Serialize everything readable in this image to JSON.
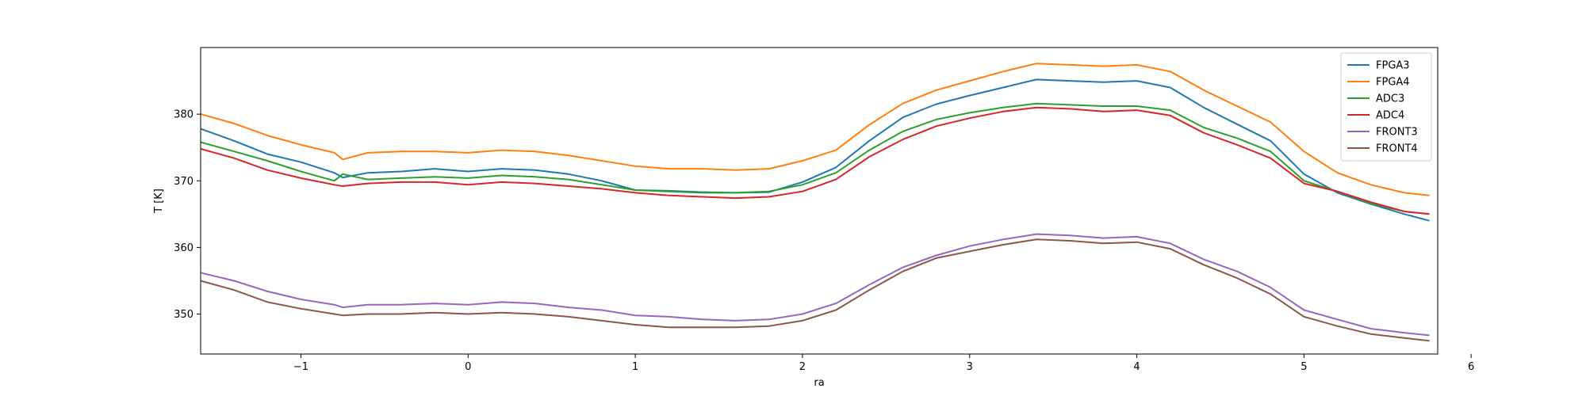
{
  "chart_data": {
    "type": "line",
    "title": "",
    "xlabel": "ra",
    "ylabel": "T [K]",
    "xlim": [
      -1.6,
      5.8
    ],
    "ylim": [
      344,
      390
    ],
    "xticks": [
      -1,
      0,
      1,
      2,
      3,
      4,
      5,
      6
    ],
    "yticks": [
      350,
      360,
      370,
      380
    ],
    "legend_position": "top-right",
    "grid": false,
    "x": [
      -1.6,
      -1.4,
      -1.2,
      -1.0,
      -0.8,
      -0.75,
      -0.6,
      -0.4,
      -0.2,
      0.0,
      0.2,
      0.4,
      0.6,
      0.8,
      1.0,
      1.2,
      1.4,
      1.6,
      1.8,
      2.0,
      2.2,
      2.4,
      2.6,
      2.8,
      3.0,
      3.2,
      3.4,
      3.6,
      3.8,
      4.0,
      4.2,
      4.4,
      4.6,
      4.8,
      5.0,
      5.2,
      5.4,
      5.6,
      5.75
    ],
    "series": [
      {
        "name": "FPGA3",
        "color": "#1f77b4",
        "values": [
          377.8,
          376.0,
          374.0,
          372.8,
          371.2,
          370.5,
          371.2,
          371.4,
          371.8,
          371.4,
          371.8,
          371.6,
          371.0,
          370.0,
          368.6,
          368.5,
          368.3,
          368.2,
          368.3,
          369.8,
          372.0,
          376.0,
          379.5,
          381.5,
          382.8,
          384.0,
          385.2,
          385.0,
          384.8,
          385.0,
          384.0,
          381.0,
          378.5,
          376.0,
          371.0,
          368.2,
          366.5,
          365.0,
          364.0
        ]
      },
      {
        "name": "FPGA4",
        "color": "#ff7f0e",
        "values": [
          380.0,
          378.6,
          376.8,
          375.4,
          374.2,
          373.2,
          374.2,
          374.4,
          374.4,
          374.2,
          374.6,
          374.4,
          373.8,
          373.0,
          372.2,
          371.8,
          371.8,
          371.6,
          371.8,
          373.0,
          374.6,
          378.4,
          381.6,
          383.6,
          385.0,
          386.4,
          387.6,
          387.4,
          387.2,
          387.4,
          386.4,
          383.6,
          381.2,
          378.8,
          374.4,
          371.2,
          369.4,
          368.2,
          367.8
        ]
      },
      {
        "name": "ADC3",
        "color": "#2ca02c",
        "values": [
          375.8,
          374.4,
          373.0,
          371.4,
          370.0,
          371.0,
          370.2,
          370.4,
          370.6,
          370.4,
          370.8,
          370.6,
          370.2,
          369.4,
          368.6,
          368.4,
          368.2,
          368.2,
          368.4,
          369.4,
          371.2,
          374.6,
          377.4,
          379.2,
          380.2,
          381.0,
          381.6,
          381.4,
          381.2,
          381.2,
          380.6,
          378.0,
          376.4,
          374.4,
          370.0,
          368.4,
          366.6,
          365.4,
          365.0
        ]
      },
      {
        "name": "ADC4",
        "color": "#d62728",
        "values": [
          374.8,
          373.4,
          371.6,
          370.4,
          369.4,
          369.2,
          369.6,
          369.8,
          369.8,
          369.4,
          369.8,
          369.6,
          369.2,
          368.8,
          368.2,
          367.8,
          367.6,
          367.4,
          367.6,
          368.4,
          370.2,
          373.6,
          376.2,
          378.2,
          379.4,
          380.4,
          381.0,
          380.8,
          380.4,
          380.6,
          379.8,
          377.2,
          375.4,
          373.4,
          369.6,
          368.4,
          366.8,
          365.4,
          365.0
        ]
      },
      {
        "name": "FRONT3",
        "color": "#9467bd",
        "values": [
          356.2,
          355.0,
          353.4,
          352.2,
          351.4,
          351.0,
          351.4,
          351.4,
          351.6,
          351.4,
          351.8,
          351.6,
          351.0,
          350.6,
          349.8,
          349.6,
          349.2,
          349.0,
          349.2,
          350.0,
          351.6,
          354.4,
          357.0,
          358.8,
          360.2,
          361.2,
          362.0,
          361.8,
          361.4,
          361.6,
          360.6,
          358.2,
          356.4,
          354.0,
          350.6,
          349.2,
          347.8,
          347.2,
          346.8
        ]
      },
      {
        "name": "FRONT4",
        "color": "#8c564b",
        "values": [
          355.0,
          353.6,
          351.8,
          350.8,
          350.0,
          349.8,
          350.0,
          350.0,
          350.2,
          350.0,
          350.2,
          350.0,
          349.6,
          349.0,
          348.4,
          348.0,
          348.0,
          348.0,
          348.2,
          349.0,
          350.6,
          353.6,
          356.4,
          358.4,
          359.4,
          360.4,
          361.2,
          361.0,
          360.6,
          360.8,
          359.8,
          357.4,
          355.4,
          353.0,
          349.6,
          348.2,
          347.0,
          346.4,
          346.0
        ]
      }
    ]
  }
}
